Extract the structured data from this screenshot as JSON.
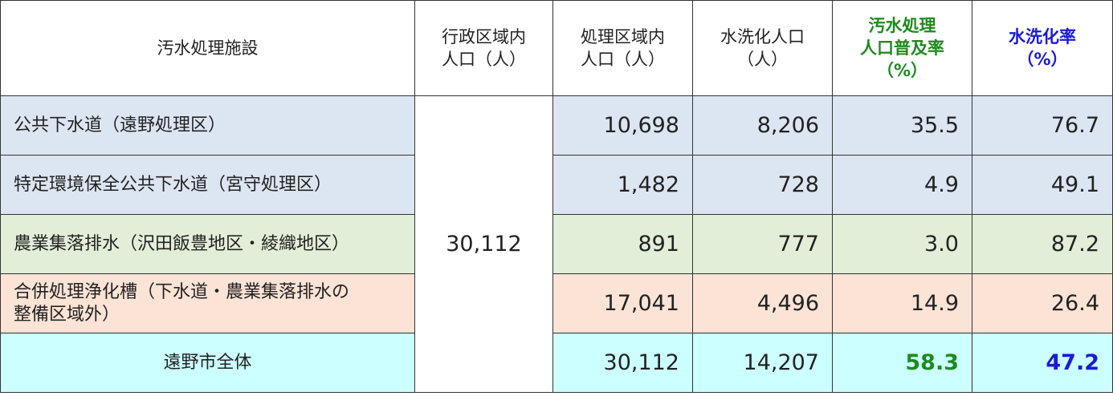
{
  "headers": {
    "facility": "汚水処理施設",
    "admin_pop": [
      "行政区域内",
      "人口（人）"
    ],
    "service_pop": [
      "処理区域内",
      "人口（人）"
    ],
    "flush_pop": [
      "水洗化人口",
      "（人）"
    ],
    "coverage_rate": [
      "汚水処理",
      "人口普及率",
      "（%）"
    ],
    "flush_rate": [
      "水洗化率",
      "（%）"
    ]
  },
  "admin_population": "30,112",
  "rows": [
    {
      "name": "公共下水道（遠野処理区）",
      "service": "10,698",
      "flush": "8,206",
      "coverage": "35.5",
      "rate": "76.7"
    },
    {
      "name": "特定環境保全公共下水道（宮守処理区）",
      "service": "1,482",
      "flush": "728",
      "coverage": "4.9",
      "rate": "49.1"
    },
    {
      "name": "農業集落排水（沢田飯豊地区・綾織地区）",
      "service": "891",
      "flush": "777",
      "coverage": "3.0",
      "rate": "87.2"
    },
    {
      "name_lines": [
        "合併処理浄化槽（下水道・農業集落排水の",
        "整備区域外）"
      ],
      "service": "17,041",
      "flush": "4,496",
      "coverage": "14.9",
      "rate": "26.4"
    },
    {
      "name": "遠野市全体",
      "service": "30,112",
      "flush": "14,207",
      "coverage": "58.3",
      "rate": "47.2"
    }
  ],
  "colors": {
    "row_sewer": "#dce6f2",
    "row_agri": "#e3eed9",
    "row_septic": "#fbe3d6",
    "row_total": "#ccffff",
    "accent_green": "#1f8a1f",
    "accent_blue": "#1a1ad6"
  }
}
